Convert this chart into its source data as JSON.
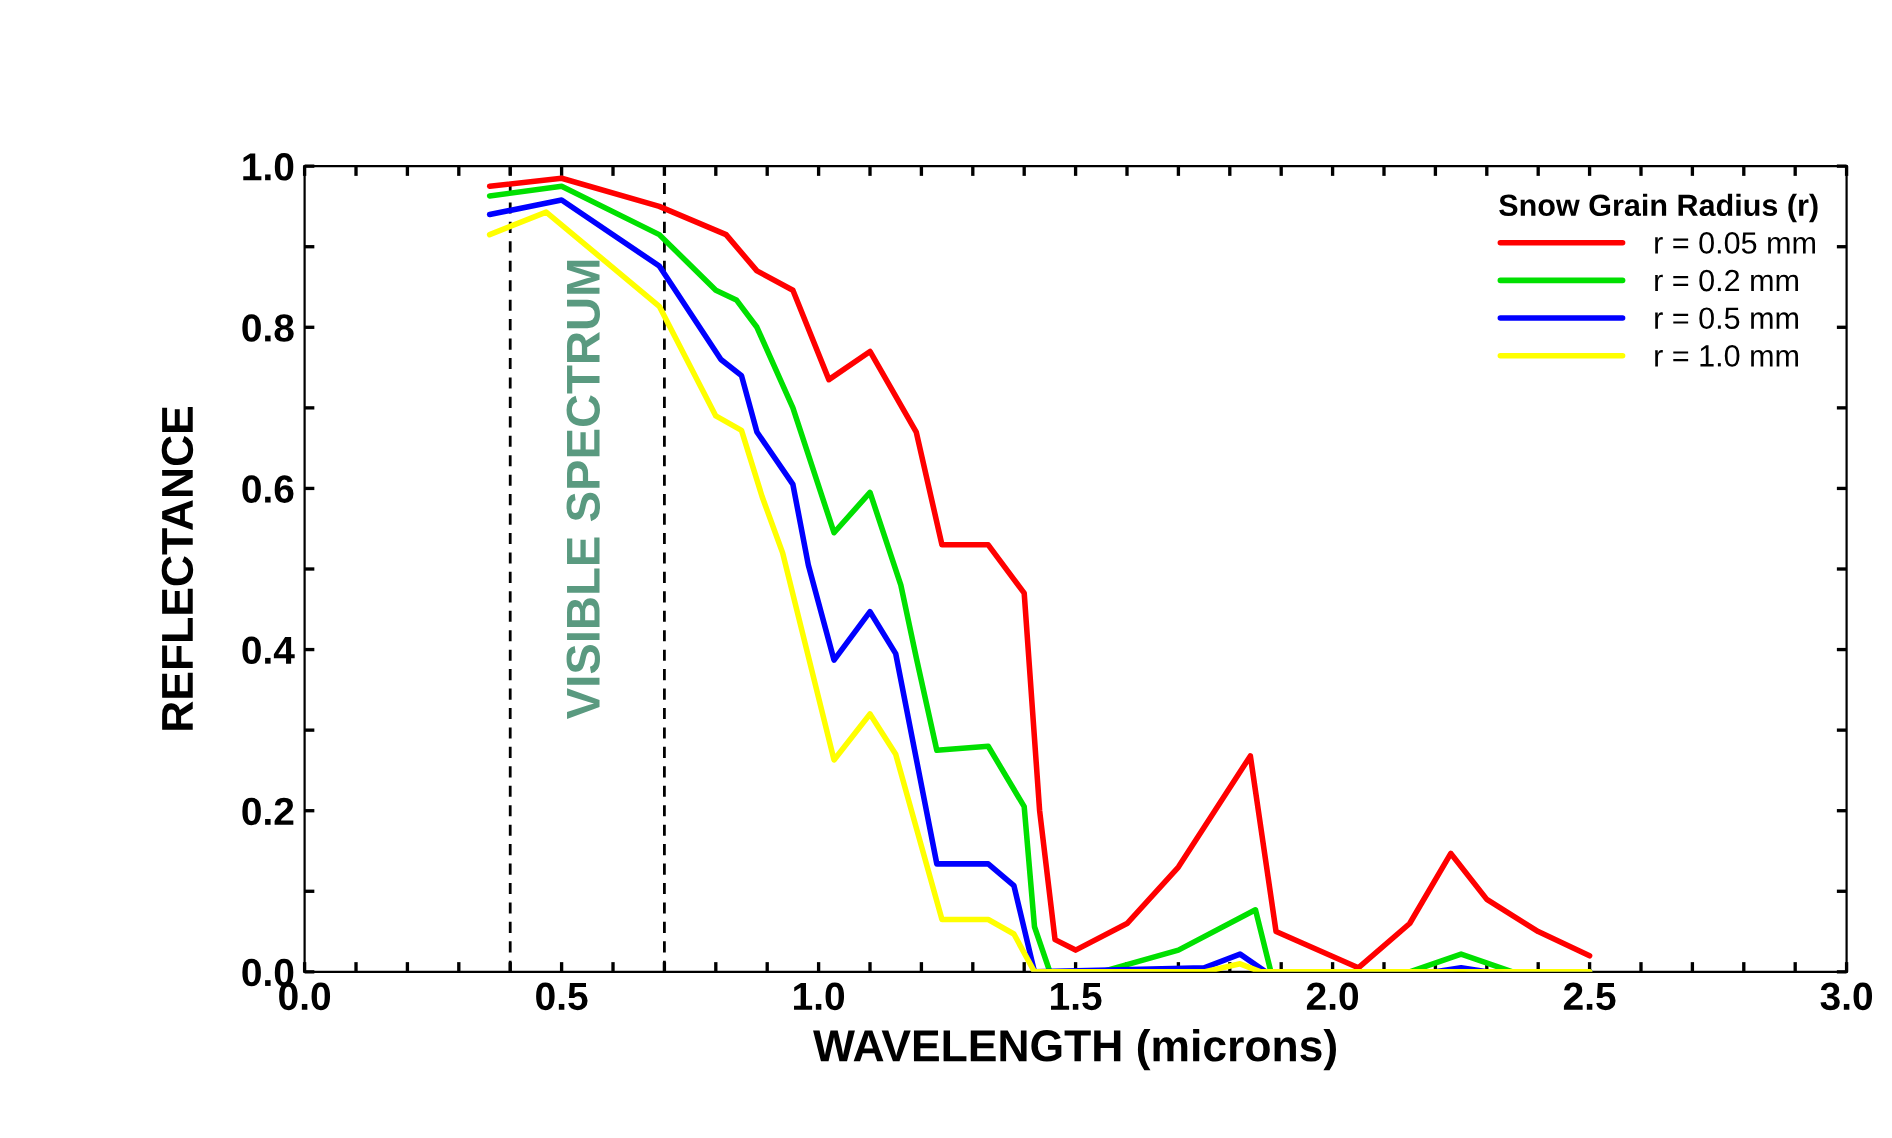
{
  "chart_data": {
    "type": "line",
    "xlabel": "WAVELENGTH (microns)",
    "ylabel": "REFLECTANCE",
    "legend_title": "Snow Grain Radius (r)",
    "xlim": [
      0.0,
      3.0
    ],
    "ylim": [
      0.0,
      1.0
    ],
    "xticks": [
      {
        "value": 0.0,
        "label": "0.0"
      },
      {
        "value": 0.1,
        "label": null
      },
      {
        "value": 0.2,
        "label": null
      },
      {
        "value": 0.3,
        "label": null
      },
      {
        "value": 0.4,
        "label": null
      },
      {
        "value": 0.5,
        "label": "0.5"
      },
      {
        "value": 0.6,
        "label": null
      },
      {
        "value": 0.7,
        "label": null
      },
      {
        "value": 0.8,
        "label": null
      },
      {
        "value": 0.9,
        "label": null
      },
      {
        "value": 1.0,
        "label": "1.0"
      },
      {
        "value": 1.1,
        "label": null
      },
      {
        "value": 1.2,
        "label": null
      },
      {
        "value": 1.3,
        "label": null
      },
      {
        "value": 1.4,
        "label": null
      },
      {
        "value": 1.5,
        "label": "1.5"
      },
      {
        "value": 1.6,
        "label": null
      },
      {
        "value": 1.7,
        "label": null
      },
      {
        "value": 1.8,
        "label": null
      },
      {
        "value": 1.9,
        "label": null
      },
      {
        "value": 2.0,
        "label": "2.0"
      },
      {
        "value": 2.1,
        "label": null
      },
      {
        "value": 2.2,
        "label": null
      },
      {
        "value": 2.3,
        "label": null
      },
      {
        "value": 2.4,
        "label": null
      },
      {
        "value": 2.5,
        "label": "2.5"
      },
      {
        "value": 2.6,
        "label": null
      },
      {
        "value": 2.7,
        "label": null
      },
      {
        "value": 2.8,
        "label": null
      },
      {
        "value": 2.9,
        "label": null
      },
      {
        "value": 3.0,
        "label": "3.0"
      }
    ],
    "yticks": [
      {
        "value": 0.0,
        "label": "0.0"
      },
      {
        "value": 0.1,
        "label": null
      },
      {
        "value": 0.2,
        "label": "0.2"
      },
      {
        "value": 0.3,
        "label": null
      },
      {
        "value": 0.4,
        "label": "0.4"
      },
      {
        "value": 0.5,
        "label": null
      },
      {
        "value": 0.6,
        "label": "0.6"
      },
      {
        "value": 0.7,
        "label": null
      },
      {
        "value": 0.8,
        "label": "0.8"
      },
      {
        "value": 0.9,
        "label": null
      },
      {
        "value": 1.0,
        "label": "1.0"
      }
    ],
    "grid": false,
    "legend": "top right",
    "marker": "none",
    "line_style": "solid",
    "ref_lines": [
      {
        "axis": "x",
        "value": 0.4,
        "color": "#000000",
        "line_style": "dashed"
      },
      {
        "axis": "x",
        "value": 0.7,
        "color": "#000000",
        "line_style": "dashed"
      }
    ],
    "annotations": [
      "VISIBLE SPECTRUM"
    ],
    "series": [
      {
        "name": "r = 0.05 mm",
        "color": "#ff0000",
        "x": [
          0.36,
          0.5,
          0.69,
          0.82,
          0.88,
          0.95,
          1.02,
          1.1,
          1.19,
          1.24,
          1.33,
          1.4,
          1.43,
          1.46,
          1.5,
          1.6,
          1.7,
          1.84,
          1.89,
          2.05,
          2.15,
          2.23,
          2.3,
          2.4,
          2.5
        ],
        "values": [
          0.975,
          0.985,
          0.95,
          0.915,
          0.87,
          0.846,
          0.735,
          0.77,
          0.67,
          0.53,
          0.53,
          0.47,
          0.2,
          0.04,
          0.027,
          0.06,
          0.13,
          0.268,
          0.05,
          0.005,
          0.06,
          0.147,
          0.09,
          0.05,
          0.02
        ]
      },
      {
        "name": "r = 0.2 mm",
        "color": "#00e000",
        "x": [
          0.36,
          0.5,
          0.69,
          0.8,
          0.84,
          0.88,
          0.95,
          1.03,
          1.1,
          1.16,
          1.19,
          1.23,
          1.33,
          1.4,
          1.42,
          1.45,
          1.55,
          1.7,
          1.85,
          1.88,
          2.15,
          2.25,
          2.35,
          2.5
        ],
        "values": [
          0.963,
          0.975,
          0.915,
          0.846,
          0.834,
          0.8,
          0.7,
          0.545,
          0.595,
          0.48,
          0.39,
          0.275,
          0.28,
          0.205,
          0.056,
          0.0,
          0.0,
          0.027,
          0.077,
          0.0,
          0.0,
          0.022,
          0.0,
          0.0
        ]
      },
      {
        "name": "r = 0.5 mm",
        "color": "#0000ff",
        "x": [
          0.36,
          0.5,
          0.69,
          0.81,
          0.85,
          0.88,
          0.95,
          0.98,
          1.03,
          1.1,
          1.15,
          1.23,
          1.33,
          1.38,
          1.42,
          1.75,
          1.82,
          1.87,
          2.2,
          2.25,
          2.3,
          2.5
        ],
        "values": [
          0.94,
          0.958,
          0.876,
          0.76,
          0.74,
          0.67,
          0.605,
          0.505,
          0.387,
          0.447,
          0.395,
          0.134,
          0.134,
          0.107,
          0.0,
          0.005,
          0.022,
          0.0,
          0.0,
          0.005,
          0.0,
          0.0
        ]
      },
      {
        "name": "r = 1.0 mm",
        "color": "#ffff00",
        "x": [
          0.36,
          0.47,
          0.69,
          0.8,
          0.85,
          0.89,
          0.93,
          1.03,
          1.1,
          1.15,
          1.24,
          1.33,
          1.38,
          1.42,
          1.75,
          1.82,
          1.86,
          2.5
        ],
        "values": [
          0.915,
          0.943,
          0.826,
          0.69,
          0.672,
          0.59,
          0.52,
          0.263,
          0.32,
          0.27,
          0.065,
          0.065,
          0.047,
          0.0,
          0.0,
          0.01,
          0.0,
          0.0
        ]
      }
    ]
  }
}
